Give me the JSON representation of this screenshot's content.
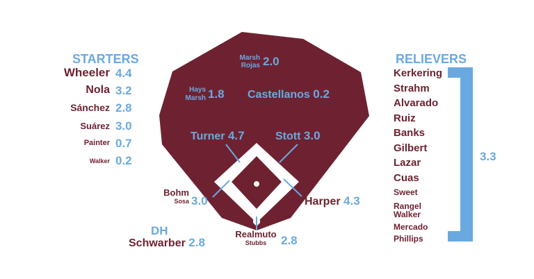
{
  "starters": {
    "header": "STARTERS",
    "pitchers": [
      {
        "name": "Wheeler",
        "war": "4.4"
      },
      {
        "name": "Nola",
        "war": "3.2"
      },
      {
        "name": "Sánchez",
        "war": "2.8"
      },
      {
        "name": "Suárez",
        "war": "3.0"
      },
      {
        "name": "Painter",
        "war": "0.7"
      },
      {
        "name": "Walker",
        "war": "0.2"
      }
    ]
  },
  "relievers": {
    "header": "RELIEVERS",
    "names": [
      "Kerkering",
      "Strahm",
      "Alvarado",
      "Ruiz",
      "Banks",
      "Gilbert",
      "Lazar",
      "Cuas",
      "Sweet",
      "Rangel",
      "Walker",
      "Mercado",
      "Phillips"
    ],
    "war": "3.3"
  },
  "field": {
    "cf": {
      "name": "Marsh",
      "backup": "Rojas",
      "war": "2.0"
    },
    "lf": {
      "name": "Hays",
      "backup": "Marsh",
      "war": "1.8"
    },
    "rf": {
      "name": "Castellanos",
      "war": "0.2"
    },
    "ss": {
      "name": "Turner",
      "war": "4.7"
    },
    "2b": {
      "name": "Stott",
      "war": "3.0"
    },
    "3b": {
      "name": "Bohm",
      "backup": "Sosa",
      "war": "3.0"
    },
    "1b": {
      "name": "Harper",
      "war": "4.3"
    },
    "c": {
      "name": "Realmuto",
      "backup": "Stubbs",
      "war": "2.8"
    },
    "dh": {
      "label": "DH",
      "name": "Schwarber",
      "war": "2.8"
    }
  },
  "colors": {
    "maroon": "#6e2231",
    "blue": "#6aa9e0",
    "white": "#ffffff"
  }
}
